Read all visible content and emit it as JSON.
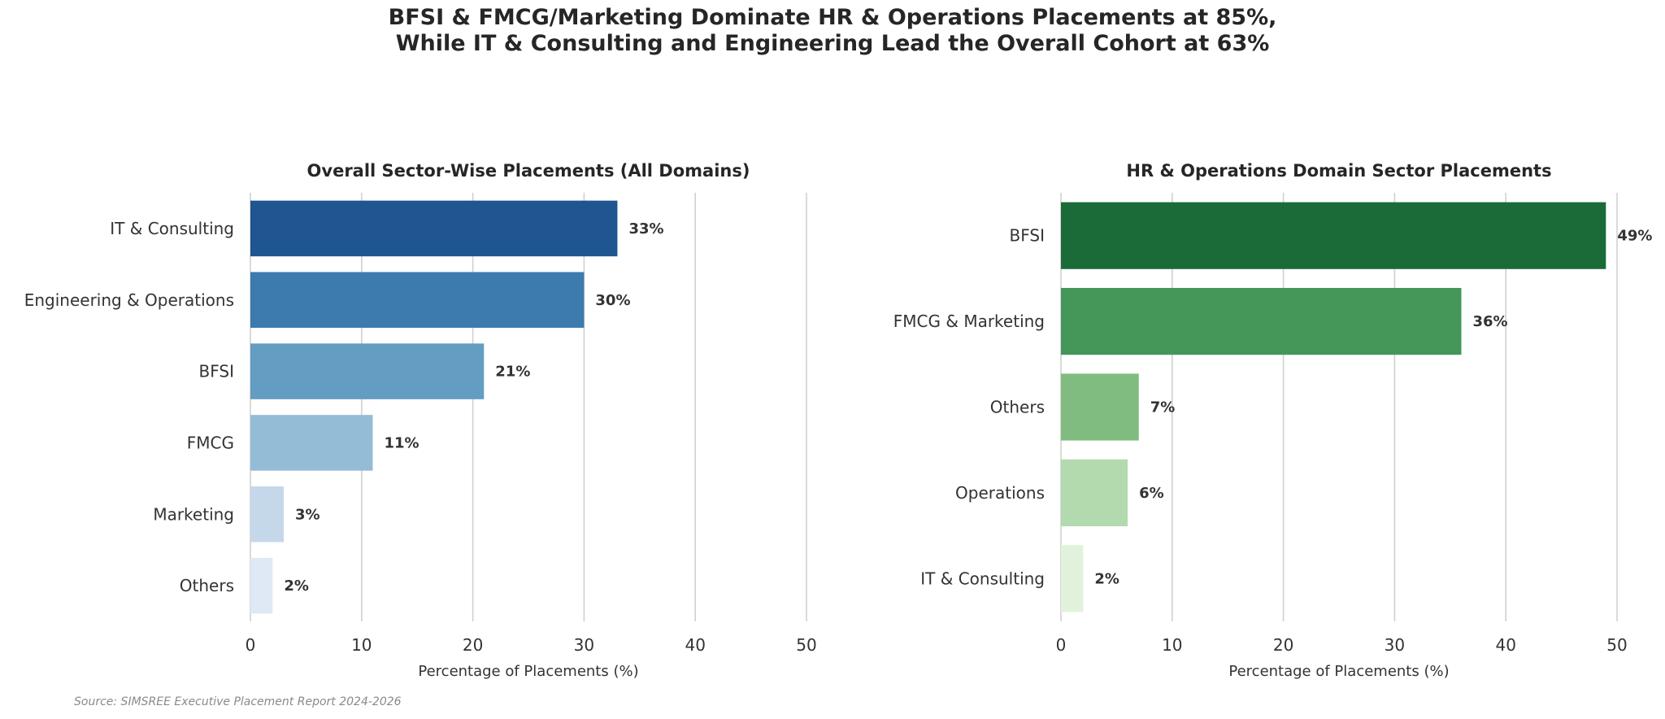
{
  "title_lines": [
    "BFSI & FMCG/Marketing Dominate HR & Operations Placements at 85%,",
    "While IT & Consulting and Engineering Lead the Overall Cohort at 63%"
  ],
  "source": "Source: SIMSREE Executive Placement Report 2024-2026",
  "colors": {
    "overall": [
      "#1f5591",
      "#3d7aad",
      "#639dc2",
      "#95bcd6",
      "#c4d8ea",
      "#dfe9f5"
    ],
    "hr_ops": [
      "#1b6b38",
      "#449659",
      "#80bc80",
      "#b3d9ae",
      "#e0f2db"
    ]
  },
  "chart_data": [
    {
      "type": "bar",
      "orientation": "horizontal",
      "title": "Overall Sector-Wise Placements (All Domains)",
      "xlabel": "Percentage of Placements (%)",
      "categories": [
        "IT & Consulting",
        "Engineering & Operations",
        "BFSI",
        "FMCG",
        "Marketing",
        "Others"
      ],
      "values": [
        33,
        30,
        21,
        11,
        3,
        2
      ],
      "value_labels": [
        "33%",
        "30%",
        "21%",
        "11%",
        "3%",
        "2%"
      ],
      "xlim": [
        0,
        50
      ],
      "xticks": [
        0,
        10,
        20,
        30,
        40,
        50
      ],
      "grid": "vertical"
    },
    {
      "type": "bar",
      "orientation": "horizontal",
      "title": "HR & Operations Domain Sector Placements",
      "xlabel": "Percentage of Placements (%)",
      "categories": [
        "BFSI",
        "FMCG & Marketing",
        "Others",
        "Operations",
        "IT & Consulting"
      ],
      "values": [
        49,
        36,
        7,
        6,
        2
      ],
      "value_labels": [
        "49%",
        "36%",
        "7%",
        "6%",
        "2%"
      ],
      "xlim": [
        0,
        50
      ],
      "xticks": [
        0,
        10,
        20,
        30,
        40,
        50
      ],
      "grid": "vertical"
    }
  ]
}
